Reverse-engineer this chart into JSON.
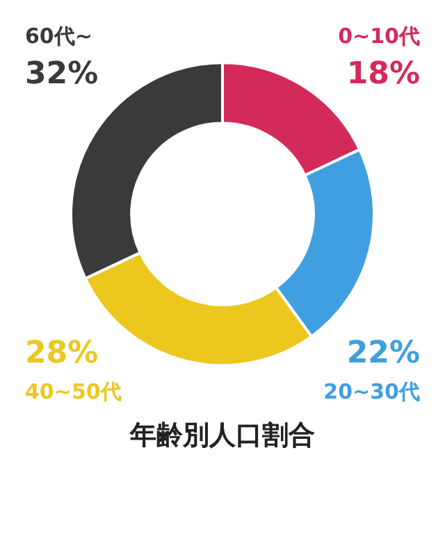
{
  "chart_data": {
    "type": "donut",
    "title": "年齢別人口割合",
    "categories": [
      "0~10代",
      "20~30代",
      "40~50代",
      "60代~"
    ],
    "values": [
      18,
      22,
      28,
      32
    ],
    "colors": [
      "#d42a5a",
      "#3f9fe0",
      "#ecc81f",
      "#3a3a3a"
    ],
    "value_labels": [
      "18%",
      "22%",
      "28%",
      "32%"
    ],
    "legend": false
  }
}
